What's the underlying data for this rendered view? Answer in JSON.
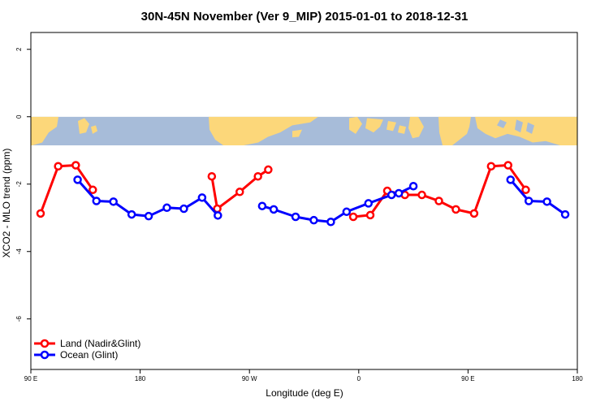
{
  "chart_data": {
    "type": "line",
    "title": "30N-45N November (Ver 9_MIP)   2015-01-01 to 2018-12-31",
    "xlabel": "Longitude (deg E)",
    "ylabel": "XCO2 - MLO trend (ppm)",
    "xlim": [
      90,
      540
    ],
    "ylim": [
      -7.5,
      2.5
    ],
    "x_ticks": [
      {
        "value": 90,
        "label": "90 E"
      },
      {
        "value": 180,
        "label": "180"
      },
      {
        "value": 270,
        "label": "90 W"
      },
      {
        "value": 360,
        "label": "0"
      },
      {
        "value": 450,
        "label": "90 E"
      },
      {
        "value": 540,
        "label": "180"
      }
    ],
    "y_ticks": [
      {
        "value": 2,
        "label": "2"
      },
      {
        "value": 0,
        "label": "0"
      },
      {
        "value": -2,
        "label": "-2"
      },
      {
        "value": -4,
        "label": "-4"
      },
      {
        "value": -6,
        "label": "-6"
      }
    ],
    "map_band": {
      "y_top": 0,
      "y_bottom": -0.85,
      "ocean_color": "#a7bcd9",
      "land_color": "#fcd77a"
    },
    "series": [
      {
        "name": "Land (Nadir&Glint)",
        "color": "#ff0000",
        "segments": [
          [
            [
              98,
              -2.87
            ],
            [
              112.5,
              -1.47
            ],
            [
              127,
              -1.44
            ],
            [
              141,
              -2.17
            ]
          ],
          [
            [
              239,
              -1.77
            ],
            [
              243.5,
              -2.73
            ],
            [
              262,
              -2.23
            ],
            [
              277,
              -1.77
            ],
            [
              285.5,
              -1.57
            ]
          ],
          [
            [
              355.5,
              -2.97
            ],
            [
              369.5,
              -2.92
            ],
            [
              383.5,
              -2.2
            ],
            [
              398,
              -2.32
            ],
            [
              412,
              -2.32
            ],
            [
              426,
              -2.5
            ],
            [
              440,
              -2.75
            ],
            [
              455,
              -2.87
            ],
            [
              469,
              -1.47
            ],
            [
              483,
              -1.44
            ],
            [
              497.5,
              -2.17
            ]
          ]
        ]
      },
      {
        "name": "Ocean (Glint)",
        "color": "#0000ff",
        "segments": [
          [
            [
              128.5,
              -1.87
            ],
            [
              144,
              -2.5
            ],
            [
              158,
              -2.52
            ],
            [
              173,
              -2.9
            ],
            [
              187,
              -2.95
            ],
            [
              202,
              -2.7
            ],
            [
              216,
              -2.73
            ],
            [
              231,
              -2.4
            ],
            [
              244,
              -2.93
            ]
          ],
          [
            [
              280.5,
              -2.65
            ],
            [
              290,
              -2.75
            ],
            [
              308,
              -2.97
            ],
            [
              323,
              -3.07
            ],
            [
              337,
              -3.12
            ],
            [
              350,
              -2.82
            ],
            [
              368,
              -2.57
            ],
            [
              387,
              -2.32
            ],
            [
              393,
              -2.27
            ],
            [
              405,
              -2.06
            ]
          ],
          [
            [
              485,
              -1.87
            ],
            [
              500,
              -2.5
            ],
            [
              515,
              -2.52
            ],
            [
              530,
              -2.9
            ]
          ]
        ]
      }
    ],
    "legend": {
      "position": "bottom-left"
    }
  }
}
